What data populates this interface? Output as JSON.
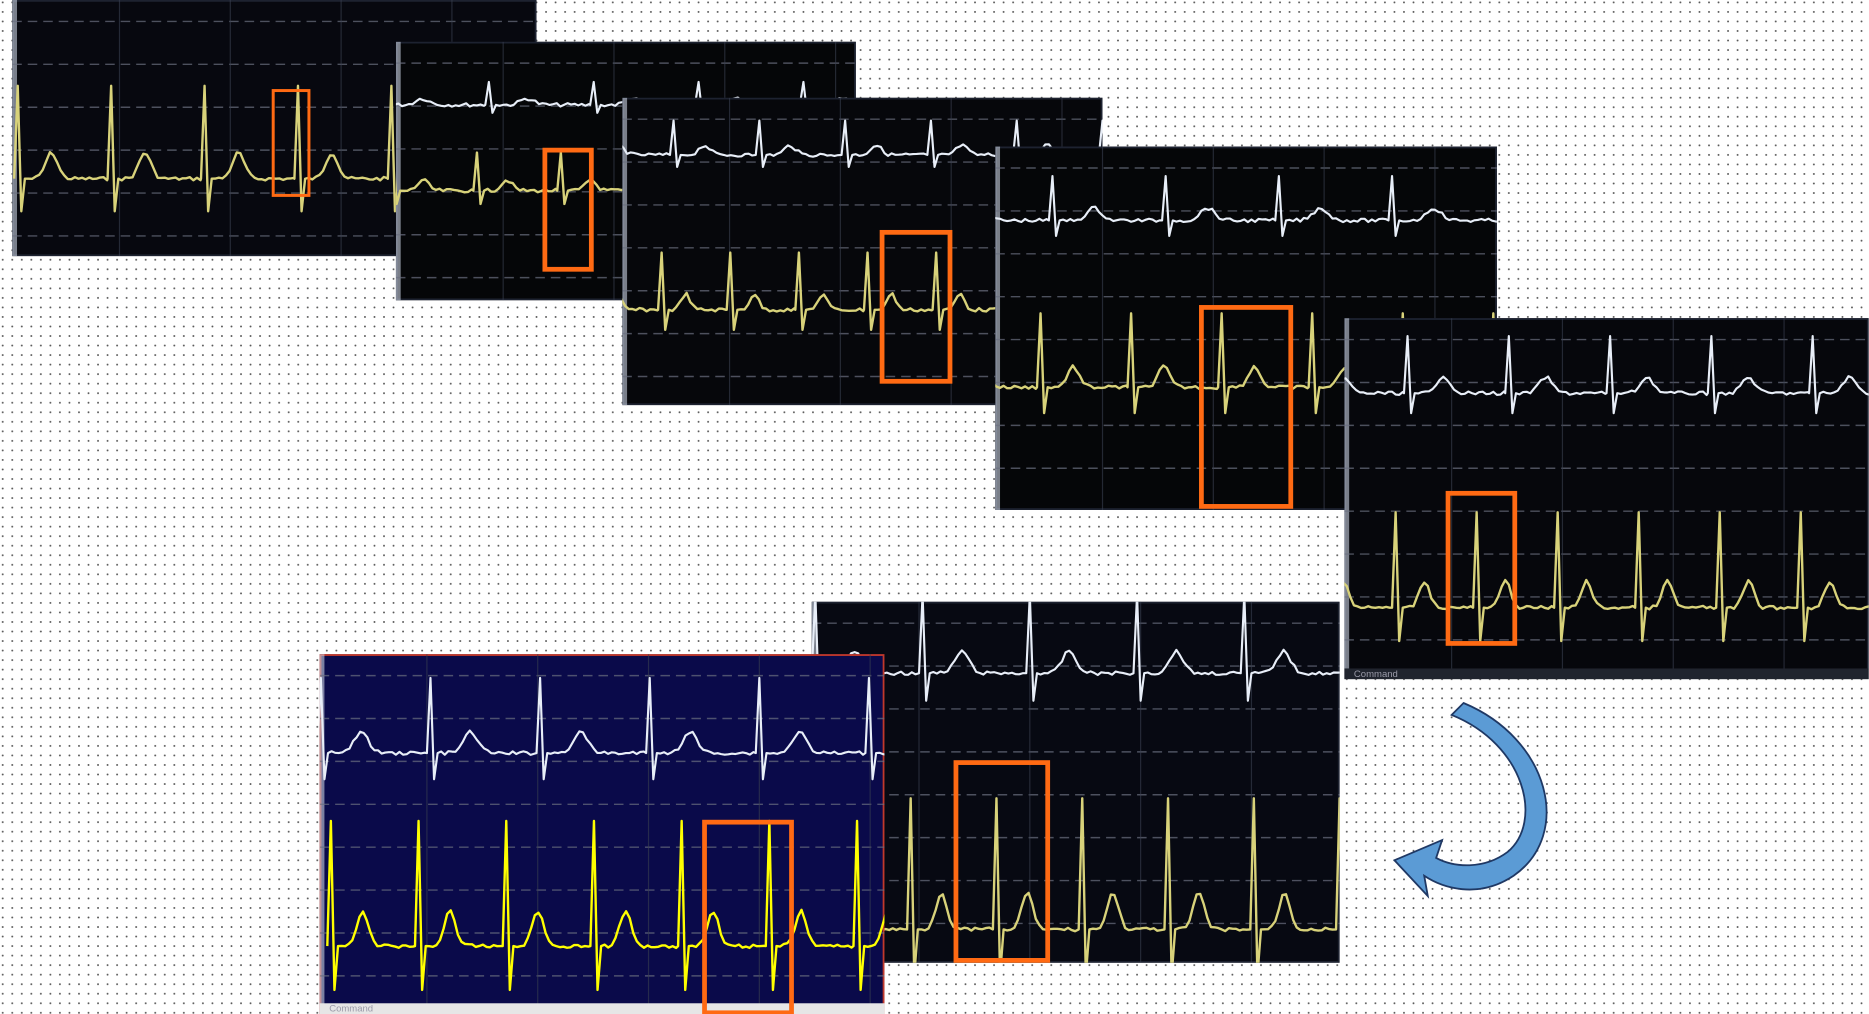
{
  "panels": [
    {
      "status": "Command"
    },
    {
      "status": "Command"
    }
  ]
}
